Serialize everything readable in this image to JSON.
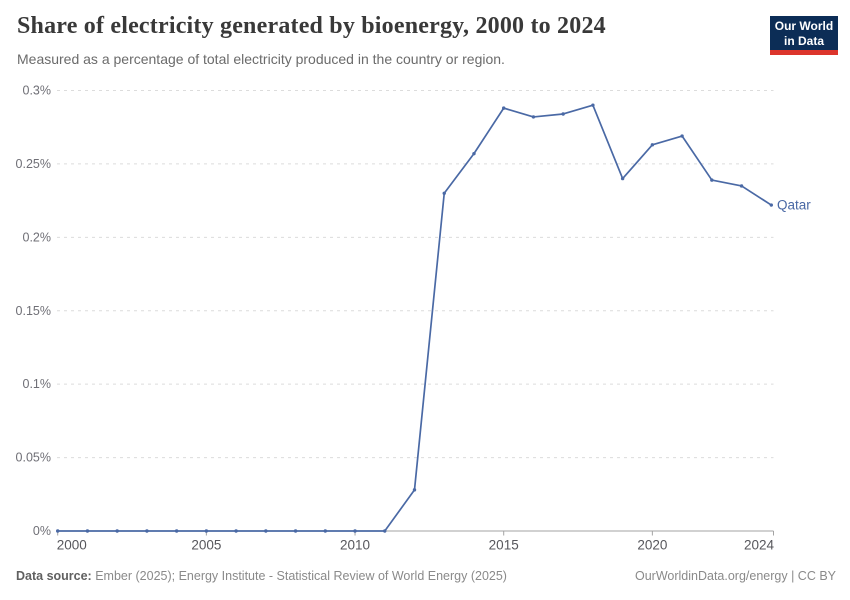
{
  "header": {
    "title": "Share of electricity generated by bioenergy, 2000 to 2024",
    "subtitle": "Measured as a percentage of total electricity produced in the country or region."
  },
  "logo": {
    "line1": "Our World",
    "line2": "in Data"
  },
  "footer": {
    "source_label": "Data source:",
    "source_text": " Ember (2025); Energy Institute - Statistical Review of World Energy (2025)",
    "credit": "OurWorldinData.org/energy | CC BY"
  },
  "colors": {
    "line": "#4a69a5",
    "logo_bg": "#0c2d56",
    "logo_accent": "#dc352c",
    "gridline": "#dcdcdc",
    "axis": "#a3a3a3"
  },
  "chart_data": {
    "type": "line",
    "title": "Share of electricity generated by bioenergy, 2000 to 2024",
    "xlabel": "",
    "ylabel": "",
    "unit": "%",
    "grid": "horizontal-dashed",
    "legend_position": "end-of-line-label",
    "xlim": [
      2000,
      2024
    ],
    "ylim": [
      0,
      0.3
    ],
    "x": [
      2000,
      2001,
      2002,
      2003,
      2004,
      2005,
      2006,
      2007,
      2008,
      2009,
      2010,
      2011,
      2012,
      2013,
      2014,
      2015,
      2016,
      2017,
      2018,
      2019,
      2020,
      2021,
      2022,
      2023,
      2024
    ],
    "series": [
      {
        "name": "Qatar",
        "values": [
          0,
          0,
          0,
          0,
          0,
          0,
          0,
          0,
          0,
          0,
          0,
          0,
          0.028,
          0.23,
          0.257,
          0.288,
          0.282,
          0.284,
          0.29,
          0.24,
          0.263,
          0.269,
          0.239,
          0.235,
          0.222
        ]
      }
    ],
    "x_ticks": [
      2000,
      2005,
      2010,
      2015,
      2020,
      2024
    ],
    "y_ticks": [
      {
        "v": 0,
        "label": "0%"
      },
      {
        "v": 0.05,
        "label": "0.05%"
      },
      {
        "v": 0.1,
        "label": "0.1%"
      },
      {
        "v": 0.15,
        "label": "0.15%"
      },
      {
        "v": 0.2,
        "label": "0.2%"
      },
      {
        "v": 0.25,
        "label": "0.25%"
      },
      {
        "v": 0.3,
        "label": "0.3%"
      }
    ],
    "end_label": "Qatar"
  }
}
